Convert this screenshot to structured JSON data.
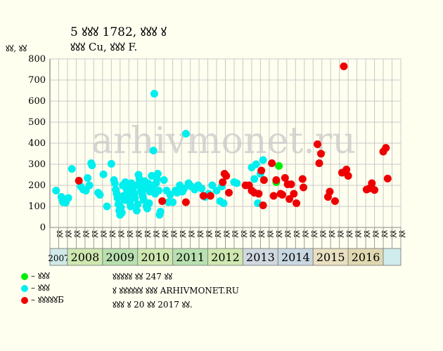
{
  "title_line1": "5 ꙋꙋꙋ 1782, ꙋꙋꙋ ꙋ",
  "title_line2": "ꙋꙋꙋ Cu, ꙋꙋꙋ F.",
  "y_unit": "ꙋꙋ, ꙋꙋ",
  "watermark": "arhivmonet.ru",
  "legend": [
    {
      "label": "– ꙋꙋꙋ",
      "color": "#00ee00"
    },
    {
      "label": "– ꙋꙋꙋ",
      "color": "#00eeee"
    },
    {
      "label": "– ꙋꙋꙋꙋꙋБ",
      "color": "#ee0000"
    }
  ],
  "notes": [
    "ꙋꙋꙋꙋꙋ ꙋꙋ 247 ꙋꙋ",
    "ꙋ ꙋꙋꙋꙋꙋꙋ ꙋꙋꙋ ARHIVMONET.RU",
    "ꙋꙋꙋ ꙋ 20 ꙋꙋ 2017 ꙋꙋ."
  ],
  "chart_data": {
    "type": "scatter",
    "ylim": [
      0,
      800
    ],
    "yticks": [
      0,
      100,
      200,
      300,
      400,
      500,
      600,
      700,
      800
    ],
    "grid": true,
    "quarter_labels": [
      "ꙋꙋ",
      "ꙋꙋ",
      "ꙋꙋ",
      "ꙋꙋ",
      "ꙋꙋ",
      "ꙋꙋ",
      "ꙋꙋ",
      "ꙋꙋ",
      "ꙋꙋ",
      "ꙋꙋ",
      "ꙋꙋ",
      "ꙋꙋ",
      "ꙋꙋ",
      "ꙋꙋ",
      "ꙋꙋ",
      "ꙋꙋ",
      "ꙋꙋ",
      "ꙋꙋ",
      "ꙋꙋ",
      "ꙋꙋ",
      "ꙋꙋ",
      "ꙋꙋ",
      "ꙋꙋ",
      "ꙋꙋ",
      "ꙋꙋ",
      "ꙋꙋ",
      "ꙋꙋ",
      "ꙋꙋ",
      "ꙋꙋ",
      "ꙋꙋ",
      "ꙋꙋ",
      "ꙋꙋ",
      "ꙋꙋ",
      "ꙋꙋ",
      "ꙋꙋ",
      "ꙋꙋ",
      "ꙋꙋ",
      "ꙋꙋ",
      "ꙋꙋ",
      "ꙋꙋ"
    ],
    "years": [
      {
        "label": "2007",
        "quarters": 2,
        "color": "#cfe8e8"
      },
      {
        "label": "2008",
        "quarters": 4,
        "color": "#cfe8b0"
      },
      {
        "label": "2009",
        "quarters": 4,
        "color": "#b8e0b0"
      },
      {
        "label": "2010",
        "quarters": 4,
        "color": "#cfe8b0"
      },
      {
        "label": "2011",
        "quarters": 4,
        "color": "#b8e0b0"
      },
      {
        "label": "2012",
        "quarters": 4,
        "color": "#cfe8b0"
      },
      {
        "label": "2013",
        "quarters": 4,
        "color": "#d0d8e0"
      },
      {
        "label": "2014",
        "quarters": 4,
        "color": "#c8d8e0"
      },
      {
        "label": "2015",
        "quarters": 4,
        "color": "#e8e0c0"
      },
      {
        "label": "2016",
        "quarters": 4,
        "color": "#e0d8b0"
      },
      {
        "label": "",
        "quarters": 2,
        "color": "#d0ecec"
      }
    ],
    "series": [
      {
        "color": "#00ee00",
        "points": [
          [
            25.3,
            215
          ],
          [
            25.6,
            292
          ]
        ]
      },
      {
        "color": "#00eeee",
        "points": [
          [
            0.2,
            175
          ],
          [
            0.8,
            145
          ],
          [
            0.9,
            135
          ],
          [
            1.0,
            120
          ],
          [
            1.3,
            118
          ],
          [
            1.6,
            140
          ],
          [
            2.0,
            278
          ],
          [
            3.0,
            195
          ],
          [
            3.3,
            180
          ],
          [
            3.6,
            175
          ],
          [
            3.8,
            235
          ],
          [
            4.0,
            200
          ],
          [
            4.2,
            305
          ],
          [
            4.3,
            295
          ],
          [
            5.0,
            165
          ],
          [
            5.2,
            155
          ],
          [
            5.6,
            252
          ],
          [
            6.0,
            100
          ],
          [
            6.5,
            302
          ],
          [
            6.8,
            225
          ],
          [
            6.9,
            210
          ],
          [
            7.0,
            180
          ],
          [
            7.1,
            160
          ],
          [
            7.2,
            140
          ],
          [
            7.3,
            110
          ],
          [
            7.4,
            80
          ],
          [
            7.5,
            60
          ],
          [
            7.6,
            95
          ],
          [
            7.7,
            70
          ],
          [
            7.8,
            200
          ],
          [
            7.9,
            150
          ],
          [
            8.0,
            130
          ],
          [
            8.1,
            215
          ],
          [
            8.2,
            185
          ],
          [
            8.3,
            165
          ],
          [
            8.4,
            195
          ],
          [
            8.5,
            150
          ],
          [
            8.6,
            120
          ],
          [
            8.7,
            100
          ],
          [
            8.8,
            210
          ],
          [
            8.9,
            180
          ],
          [
            9.0,
            170
          ],
          [
            9.1,
            160
          ],
          [
            9.2,
            140
          ],
          [
            9.3,
            200
          ],
          [
            9.4,
            80
          ],
          [
            9.5,
            110
          ],
          [
            9.6,
            250
          ],
          [
            9.7,
            230
          ],
          [
            9.8,
            195
          ],
          [
            9.9,
            175
          ],
          [
            10.0,
            160
          ],
          [
            10.1,
            145
          ],
          [
            10.2,
            130
          ],
          [
            10.3,
            220
          ],
          [
            10.4,
            185
          ],
          [
            10.5,
            100
          ],
          [
            10.6,
            90
          ],
          [
            10.7,
            210
          ],
          [
            10.8,
            115
          ],
          [
            10.9,
            170
          ],
          [
            11.0,
            200
          ],
          [
            11.1,
            245
          ],
          [
            11.2,
            190
          ],
          [
            11.3,
            365
          ],
          [
            11.4,
            635
          ],
          [
            11.5,
            160
          ],
          [
            11.6,
            210
          ],
          [
            11.7,
            230
          ],
          [
            11.8,
            255
          ],
          [
            11.9,
            175
          ],
          [
            12.0,
            60
          ],
          [
            12.1,
            75
          ],
          [
            12.5,
            225
          ],
          [
            12.8,
            175
          ],
          [
            13.0,
            120
          ],
          [
            13.2,
            155
          ],
          [
            13.5,
            120
          ],
          [
            13.8,
            175
          ],
          [
            14.0,
            165
          ],
          [
            14.3,
            200
          ],
          [
            14.6,
            170
          ],
          [
            14.8,
            185
          ],
          [
            15.0,
            445
          ],
          [
            15.3,
            210
          ],
          [
            15.6,
            195
          ],
          [
            16.0,
            180
          ],
          [
            16.4,
            200
          ],
          [
            16.8,
            185
          ],
          [
            17.2,
            145
          ],
          [
            17.6,
            160
          ],
          [
            18.0,
            200
          ],
          [
            18.5,
            175
          ],
          [
            18.9,
            125
          ],
          [
            19.1,
            195
          ],
          [
            19.3,
            115
          ],
          [
            20.5,
            215
          ],
          [
            20.8,
            210
          ],
          [
            22.5,
            285
          ],
          [
            22.8,
            230
          ],
          [
            23.0,
            300
          ],
          [
            23.2,
            115
          ],
          [
            23.5,
            255
          ],
          [
            23.8,
            320
          ]
        ]
      },
      {
        "color": "#ee0000",
        "points": [
          [
            2.8,
            222
          ],
          [
            12.3,
            125
          ],
          [
            15.0,
            120
          ],
          [
            17.0,
            150
          ],
          [
            17.8,
            150
          ],
          [
            19.2,
            215
          ],
          [
            19.4,
            255
          ],
          [
            19.6,
            245
          ],
          [
            19.9,
            165
          ],
          [
            21.8,
            200
          ],
          [
            22.2,
            200
          ],
          [
            22.5,
            175
          ],
          [
            22.8,
            165
          ],
          [
            23.3,
            160
          ],
          [
            23.6,
            270
          ],
          [
            23.8,
            105
          ],
          [
            23.9,
            225
          ],
          [
            24.8,
            305
          ],
          [
            25.0,
            150
          ],
          [
            25.3,
            225
          ],
          [
            25.8,
            160
          ],
          [
            26.0,
            155
          ],
          [
            26.3,
            235
          ],
          [
            26.6,
            205
          ],
          [
            26.8,
            135
          ],
          [
            27.0,
            205
          ],
          [
            27.3,
            160
          ],
          [
            27.6,
            115
          ],
          [
            28.3,
            230
          ],
          [
            28.4,
            190
          ],
          [
            30.0,
            395
          ],
          [
            30.2,
            305
          ],
          [
            30.4,
            350
          ],
          [
            31.2,
            145
          ],
          [
            31.4,
            170
          ],
          [
            32.0,
            125
          ],
          [
            32.8,
            260
          ],
          [
            33.0,
            765
          ],
          [
            33.3,
            275
          ],
          [
            33.5,
            245
          ],
          [
            35.6,
            180
          ],
          [
            35.9,
            185
          ],
          [
            36.2,
            210
          ],
          [
            36.5,
            178
          ],
          [
            37.5,
            360
          ],
          [
            37.8,
            378
          ],
          [
            38.0,
            232
          ]
        ]
      }
    ]
  }
}
